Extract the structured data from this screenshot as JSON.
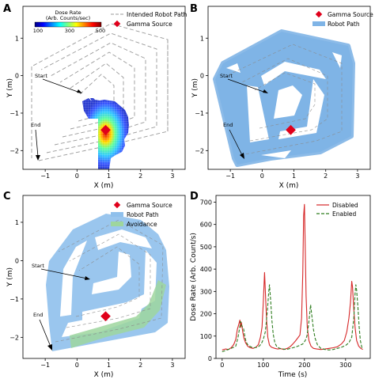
{
  "chart_data": [
    {
      "panel": "A",
      "type": "heatmap",
      "xlabel": "X (m)",
      "ylabel": "Y (m)",
      "xlim": [
        -1.7,
        3.4
      ],
      "ylim": [
        -2.5,
        1.85
      ],
      "xticks": [
        -1,
        0,
        1,
        2,
        3
      ],
      "yticks": [
        1,
        0,
        -1,
        -2
      ],
      "colorbar": {
        "label": "Dose Rate\n(Arb. Counts/sec)",
        "ticks": [
          100,
          300,
          500
        ]
      },
      "legend": [
        "Intended Robot Path",
        "Gamma Source"
      ],
      "gamma_source": [
        0.9,
        -1.45
      ],
      "annotations": [
        {
          "text": "Start",
          "xy": [
            0.0,
            -0.28
          ]
        },
        {
          "text": "End",
          "xy": [
            -1.5,
            -2.3
          ]
        }
      ]
    },
    {
      "panel": "B",
      "type": "scatter",
      "xlabel": "X (m)",
      "ylabel": "Y (m)",
      "xlim": [
        -1.7,
        3.4
      ],
      "ylim": [
        -2.5,
        1.85
      ],
      "xticks": [
        -1,
        0,
        1,
        2,
        3
      ],
      "yticks": [
        1,
        0,
        -1,
        -2
      ],
      "legend": [
        "Gamma Source",
        "Robot Path"
      ],
      "gamma_source": [
        0.9,
        -1.45
      ],
      "annotations": [
        {
          "text": "Start",
          "xy": [
            0.0,
            -0.28
          ]
        },
        {
          "text": "End",
          "xy": [
            -1.0,
            -2.3
          ]
        }
      ]
    },
    {
      "panel": "C",
      "type": "scatter",
      "xlabel": "X (m)",
      "ylabel": "Y (m)",
      "xlim": [
        -1.7,
        3.4
      ],
      "ylim": [
        -2.55,
        1.7
      ],
      "xticks": [
        -1,
        0,
        1,
        2,
        3
      ],
      "yticks": [
        1,
        0,
        -1,
        -2
      ],
      "legend": [
        "Gamma Source",
        "Robot Path",
        "Avoidance"
      ],
      "gamma_source": [
        0.9,
        -1.45
      ],
      "annotations": [
        {
          "text": "Start",
          "xy": [
            0.1,
            -0.25
          ]
        },
        {
          "text": "End",
          "xy": [
            -1.0,
            -2.4
          ]
        }
      ]
    },
    {
      "panel": "D",
      "type": "line",
      "xlabel": "Time (s)",
      "ylabel": "Dose Rate (Arb. Count/s)",
      "xlim": [
        -15,
        360
      ],
      "ylim": [
        0,
        730
      ],
      "xticks": [
        0,
        100,
        200,
        300
      ],
      "yticks": [
        0,
        100,
        200,
        300,
        400,
        500,
        600,
        700
      ],
      "legend_position": "top-right",
      "series": [
        {
          "name": "Disabled",
          "color": "#d62728",
          "x": [
            0,
            8,
            15,
            22,
            28,
            33,
            37,
            40,
            43,
            45,
            47,
            50,
            53,
            57,
            62,
            68,
            75,
            82,
            88,
            93,
            97,
            100,
            103,
            105,
            108,
            111,
            115,
            120,
            128,
            135,
            142,
            150,
            158,
            165,
            172,
            178,
            184,
            189,
            193,
            196,
            198,
            200,
            202,
            204,
            207,
            211,
            216,
            222,
            230,
            240,
            250,
            260,
            270,
            280,
            290,
            297,
            303,
            308,
            312,
            315,
            317,
            320,
            323,
            327,
            332,
            337,
            342
          ],
          "y": [
            38,
            42,
            40,
            48,
            62,
            85,
            130,
            150,
            172,
            140,
            160,
            120,
            90,
            70,
            55,
            48,
            45,
            50,
            62,
            95,
            140,
            250,
            385,
            300,
            170,
            95,
            60,
            50,
            45,
            42,
            44,
            40,
            45,
            52,
            65,
            78,
            92,
            105,
            180,
            380,
            640,
            690,
            500,
            280,
            140,
            80,
            55,
            45,
            42,
            40,
            42,
            45,
            48,
            52,
            65,
            80,
            120,
            180,
            250,
            345,
            320,
            220,
            140,
            80,
            55,
            45,
            40
          ]
        },
        {
          "name": "Enabled",
          "color": "#2e7d1f",
          "x": [
            0,
            8,
            15,
            22,
            28,
            33,
            38,
            42,
            45,
            48,
            52,
            55,
            58,
            62,
            67,
            72,
            78,
            84,
            90,
            95,
            100,
            105,
            110,
            113,
            115,
            118,
            121,
            124,
            128,
            133,
            140,
            148,
            156,
            164,
            172,
            180,
            188,
            196,
            202,
            206,
            210,
            213,
            215,
            218,
            222,
            226,
            232,
            240,
            250,
            260,
            270,
            280,
            290,
            300,
            308,
            315,
            320,
            323,
            325,
            327,
            330,
            333,
            336,
            340
          ],
          "y": [
            30,
            35,
            40,
            45,
            50,
            55,
            90,
            130,
            165,
            145,
            135,
            100,
            75,
            62,
            55,
            50,
            48,
            50,
            55,
            65,
            85,
            120,
            215,
            295,
            330,
            255,
            170,
            110,
            70,
            52,
            45,
            42,
            40,
            44,
            48,
            52,
            58,
            65,
            80,
            100,
            150,
            205,
            240,
            190,
            130,
            90,
            60,
            45,
            40,
            38,
            40,
            45,
            50,
            58,
            70,
            95,
            180,
            290,
            330,
            305,
            230,
            140,
            80,
            45
          ]
        }
      ]
    }
  ]
}
